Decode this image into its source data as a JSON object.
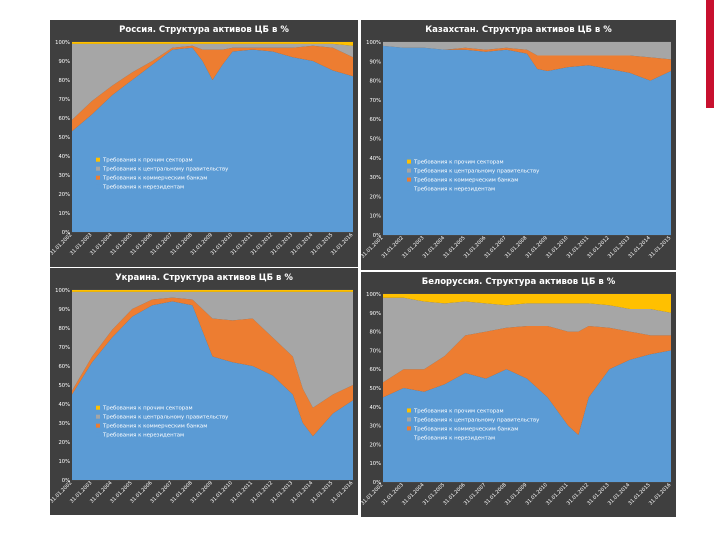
{
  "page": {
    "accent_color": "#c8102e",
    "background": "#ffffff"
  },
  "colors": {
    "other_sectors": "#ffc000",
    "government": "#a6a6a6",
    "banks": "#ed7d31",
    "nonresidents": "#5b9bd5",
    "panel_bg": "#3f3f3f",
    "text": "#ffffff"
  },
  "chart_data": [
    {
      "type": "area",
      "stacked": true,
      "title": "Россия. Структура активов ЦБ в %",
      "ylim": [
        0,
        100
      ],
      "yticks": [
        "0%",
        "10%",
        "20%",
        "30%",
        "40%",
        "50%",
        "60%",
        "70%",
        "80%",
        "90%",
        "100%"
      ],
      "xticks": [
        "31.01.2002",
        "31.01.2003",
        "31.01.2004",
        "31.01.2005",
        "31.01.2006",
        "31.01.2007",
        "31.01.2008",
        "31.01.2009",
        "31.01.2010",
        "31.01.2011",
        "31.01.2012",
        "31.01.2013",
        "31.01.2014",
        "31.01.2015",
        "31.01.2016"
      ],
      "legend_position": "middle-left",
      "legend": [
        "Требования к прочим секторам",
        "Требования к центральному правительству",
        "Требования к коммерческим банкам",
        "Требования к нерезидентам"
      ],
      "x": [
        0,
        1,
        2,
        3,
        4,
        5,
        6,
        6.5,
        7,
        7.5,
        8,
        9,
        10,
        11,
        12,
        13,
        14
      ],
      "series": [
        {
          "name": "Требования к нерезидентам",
          "values": [
            53,
            62,
            72,
            80,
            88,
            96,
            97,
            90,
            80,
            88,
            95,
            96,
            95,
            92,
            90,
            85,
            82
          ]
        },
        {
          "name": "Требования к коммерческим банкам",
          "values": [
            6,
            7,
            5,
            4,
            2,
            1,
            1,
            6,
            16,
            8,
            2,
            1,
            2,
            5,
            8,
            12,
            10
          ]
        },
        {
          "name": "Требования к центральному правительству",
          "values": [
            40,
            30,
            22,
            15,
            9,
            2,
            1,
            3,
            3,
            3,
            2,
            2,
            2,
            2,
            1,
            2,
            6
          ]
        },
        {
          "name": "Требования к прочим секторам",
          "values": [
            1,
            1,
            1,
            1,
            1,
            1,
            1,
            1,
            1,
            1,
            1,
            1,
            1,
            1,
            1,
            1,
            2
          ]
        }
      ]
    },
    {
      "type": "area",
      "stacked": true,
      "title": "Казахстан. Структура активов ЦБ в %",
      "ylim": [
        0,
        100
      ],
      "yticks": [
        "0%",
        "10%",
        "20%",
        "30%",
        "40%",
        "50%",
        "60%",
        "70%",
        "80%",
        "90%",
        "100%"
      ],
      "xticks": [
        "31.01.2001",
        "31.01.2002",
        "31.01.2003",
        "31.01.2004",
        "31.01.2005",
        "31.01.2006",
        "31.01.2007",
        "31.01.2008",
        "31.01.2009",
        "31.01.2010",
        "31.01.2011",
        "31.01.2012",
        "31.01.2013",
        "31.01.2014",
        "31.01.2015"
      ],
      "legend_position": "middle-left",
      "legend": [
        "Требования к прочим секторам",
        "Требования к центральному правительству",
        "Требования к коммерческим банкам",
        "Требования к нерезидентам"
      ],
      "x": [
        0,
        1,
        2,
        3,
        4,
        5,
        6,
        7,
        7.5,
        8,
        9,
        10,
        11,
        12,
        13,
        14
      ],
      "series": [
        {
          "name": "Требования к нерезидентам",
          "values": [
            98,
            97,
            97,
            96,
            96,
            95,
            96,
            94,
            86,
            85,
            87,
            88,
            86,
            84,
            80,
            85
          ]
        },
        {
          "name": "Требования к коммерческим банкам",
          "values": [
            0,
            0,
            0,
            0,
            1,
            1,
            1,
            2,
            7,
            8,
            6,
            5,
            7,
            9,
            12,
            6
          ]
        },
        {
          "name": "Требования к центральному правительству",
          "values": [
            2,
            3,
            3,
            4,
            3,
            4,
            3,
            4,
            7,
            7,
            7,
            7,
            7,
            7,
            8,
            9
          ]
        },
        {
          "name": "Требования к прочим секторам",
          "values": [
            0,
            0,
            0,
            0,
            0,
            0,
            0,
            0,
            0,
            0,
            0,
            0,
            0,
            0,
            0,
            0
          ]
        }
      ]
    },
    {
      "type": "area",
      "stacked": true,
      "title": "Украина. Структура активов ЦБ в %",
      "ylim": [
        0,
        100
      ],
      "yticks": [
        "0%",
        "10%",
        "20%",
        "30%",
        "40%",
        "50%",
        "60%",
        "70%",
        "80%",
        "90%",
        "100%"
      ],
      "xticks": [
        "31.01.2002",
        "31.01.2003",
        "31.01.2004",
        "31.01.2005",
        "31.01.2006",
        "31.01.2007",
        "31.01.2008",
        "31.01.2009",
        "31.01.2010",
        "31.01.2011",
        "31.01.2012",
        "31.01.2013",
        "31.01.2014",
        "31.01.2015",
        "31.01.2016"
      ],
      "legend_position": "middle-left",
      "legend": [
        "Требования к прочим секторам",
        "Требования к центральному правительству",
        "Требования к коммерческим банкам",
        "Требования к нерезидентам"
      ],
      "x": [
        0,
        1,
        2,
        3,
        4,
        5,
        6,
        7,
        8,
        9,
        10,
        11,
        11.5,
        12,
        13,
        14
      ],
      "series": [
        {
          "name": "Требования к нерезидентам",
          "values": [
            45,
            62,
            75,
            86,
            92,
            94,
            92,
            65,
            62,
            60,
            55,
            45,
            30,
            23,
            35,
            42
          ]
        },
        {
          "name": "Требования к коммерческим банкам",
          "values": [
            2,
            3,
            4,
            4,
            3,
            2,
            3,
            20,
            22,
            25,
            20,
            20,
            18,
            15,
            10,
            8
          ]
        },
        {
          "name": "Требования к центральному правительству",
          "values": [
            52,
            34,
            20,
            9,
            4,
            3,
            4,
            14,
            15,
            14,
            24,
            34,
            51,
            61,
            54,
            49
          ]
        },
        {
          "name": "Требования к прочим секторам",
          "values": [
            1,
            1,
            1,
            1,
            1,
            1,
            1,
            1,
            1,
            1,
            1,
            1,
            1,
            1,
            1,
            1
          ]
        }
      ]
    },
    {
      "type": "area",
      "stacked": true,
      "title": "Белоруссия. Структура активов ЦБ в %",
      "ylim": [
        0,
        100
      ],
      "yticks": [
        "0%",
        "10%",
        "20%",
        "30%",
        "40%",
        "50%",
        "60%",
        "70%",
        "80%",
        "90%",
        "100%"
      ],
      "xticks": [
        "31.01.2002",
        "31.01.2003",
        "31.01.2004",
        "31.01.2005",
        "31.01.2006",
        "31.01.2007",
        "31.01.2008",
        "31.01.2009",
        "31.01.2010",
        "31.01.2011",
        "31.01.2012",
        "31.01.2013",
        "31.01.2014",
        "31.01.2015",
        "31.01.2016"
      ],
      "legend_position": "middle-left",
      "legend": [
        "Требования к прочим секторам",
        "Требования к центральному правительству",
        "Требования к коммерческим банкам",
        "Требования к нерезидентам"
      ],
      "x": [
        0,
        1,
        2,
        3,
        4,
        5,
        6,
        7,
        8,
        9,
        9.5,
        10,
        11,
        12,
        13,
        14
      ],
      "series": [
        {
          "name": "Требования к нерезидентам",
          "values": [
            45,
            50,
            48,
            52,
            58,
            55,
            60,
            55,
            45,
            30,
            25,
            45,
            60,
            65,
            68,
            70
          ]
        },
        {
          "name": "Требования к коммерческим банкам",
          "values": [
            8,
            10,
            12,
            15,
            20,
            25,
            22,
            28,
            38,
            50,
            55,
            38,
            22,
            15,
            10,
            8
          ]
        },
        {
          "name": "Требования к центральному правительству",
          "values": [
            45,
            38,
            36,
            28,
            18,
            15,
            12,
            12,
            12,
            15,
            15,
            12,
            12,
            12,
            14,
            12
          ]
        },
        {
          "name": "Требования к прочим секторам",
          "values": [
            2,
            2,
            4,
            5,
            4,
            5,
            6,
            5,
            5,
            5,
            5,
            5,
            6,
            8,
            8,
            10
          ]
        }
      ]
    }
  ]
}
